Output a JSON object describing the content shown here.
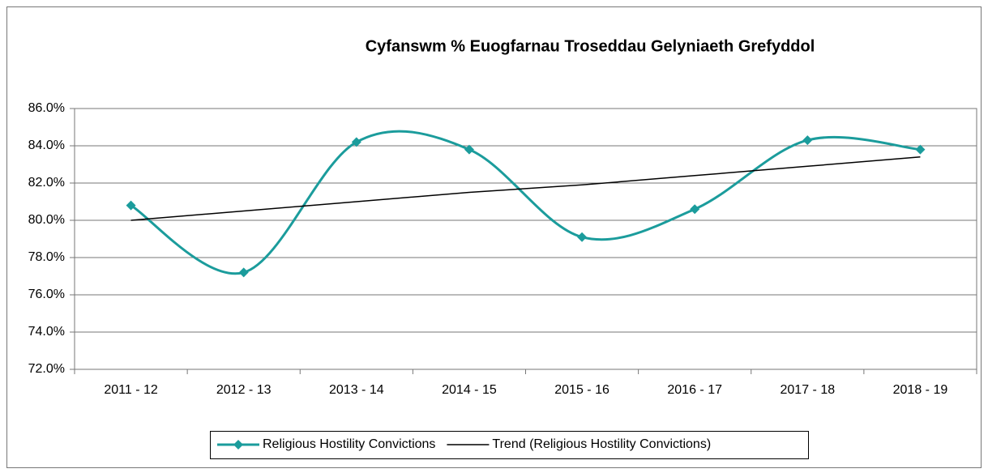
{
  "chart_data": {
    "type": "line",
    "title": "Cyfanswm % Euogfarnau Troseddau Gelyniaeth Grefyddol",
    "categories": [
      "2011 - 12",
      "2012 - 13",
      "2013 - 14",
      "2014 - 15",
      "2015 - 16",
      "2016 - 17",
      "2017 - 18",
      "2018 - 19"
    ],
    "series": [
      {
        "name": "Religious Hostility Convictions",
        "color": "#1b9c9c",
        "smooth": true,
        "marker": "diamond",
        "values": [
          80.8,
          77.2,
          84.2,
          83.8,
          79.1,
          80.6,
          84.3,
          83.8
        ]
      },
      {
        "name": "Trend (Religious Hostility Convictions)",
        "color": "#000000",
        "smooth": false,
        "values": [
          80.0,
          80.5,
          81.0,
          81.5,
          81.9,
          82.4,
          82.9,
          83.4
        ]
      }
    ],
    "ylim": [
      72,
      86
    ],
    "yticks": [
      {
        "value": 72,
        "label": "72.0%"
      },
      {
        "value": 74,
        "label": "74.0%"
      },
      {
        "value": 76,
        "label": "76.0%"
      },
      {
        "value": 78,
        "label": "78.0%"
      },
      {
        "value": 80,
        "label": "80.0%"
      },
      {
        "value": 82,
        "label": "82.0%"
      },
      {
        "value": 84,
        "label": "84.0%"
      },
      {
        "value": 86,
        "label": "86.0%"
      }
    ],
    "grid": true,
    "legend": "bottom"
  }
}
